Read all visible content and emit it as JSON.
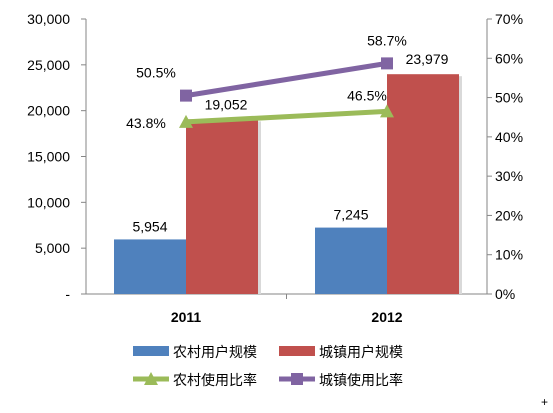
{
  "chart_data": {
    "type": "bar",
    "categories": [
      "2011",
      "2012"
    ],
    "series": [
      {
        "name": "农村用户规模",
        "kind": "bar",
        "axis": "left",
        "color": "#4f81bd",
        "values": [
          5954,
          7245
        ],
        "labels": [
          "5,954",
          "7,245"
        ]
      },
      {
        "name": "城镇用户规模",
        "kind": "bar",
        "axis": "left",
        "color": "#c0504d",
        "values": [
          19052,
          23979
        ],
        "labels": [
          "19,052",
          "23,979"
        ]
      },
      {
        "name": "农村使用比率",
        "kind": "line",
        "axis": "right",
        "color": "#9bbb59",
        "values": [
          43.8,
          46.5
        ],
        "labels": [
          "43.8%",
          "46.5%"
        ]
      },
      {
        "name": "城镇使用比率",
        "kind": "line",
        "axis": "right",
        "color": "#8064a2",
        "values": [
          50.5,
          58.7
        ],
        "labels": [
          "50.5%",
          "58.7%"
        ]
      }
    ],
    "left_axis": {
      "ylim": [
        0,
        30000
      ],
      "tick_values": [
        0,
        5000,
        10000,
        15000,
        20000,
        25000,
        30000
      ],
      "tick_labels": [
        "-",
        "5,000",
        "10,000",
        "15,000",
        "20,000",
        "25,000",
        "30,000"
      ]
    },
    "right_axis": {
      "ylim": [
        0,
        70
      ],
      "tick_values": [
        0,
        10,
        20,
        30,
        40,
        50,
        60,
        70
      ],
      "tick_labels": [
        "0%",
        "10%",
        "20%",
        "30%",
        "40%",
        "50%",
        "60%",
        "70%"
      ]
    },
    "grid": false,
    "legend_position": "bottom"
  },
  "footer_mark": "+"
}
